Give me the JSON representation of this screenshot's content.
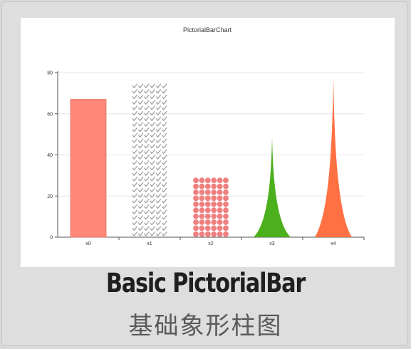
{
  "page": {
    "caption_en": "Basic PictorialBar",
    "caption_zh": "基础象形柱图"
  },
  "chart_data": {
    "type": "bar",
    "title": "PictorialBarChart",
    "categories": [
      "x0",
      "x1",
      "x2",
      "x3",
      "x4"
    ],
    "series": [
      {
        "values": [
          67,
          75,
          30,
          49,
          79
        ]
      }
    ],
    "symbols": [
      "rect",
      "check-mark",
      "circle",
      "spike",
      "spike"
    ],
    "colors": [
      "#ff8878",
      "#a0a0a0",
      "#f08080",
      "#4caf1c",
      "#ff7043"
    ],
    "ylim": [
      0,
      80
    ],
    "yticks": [
      0,
      20,
      40,
      60,
      80
    ],
    "grid": true,
    "legend": "none"
  }
}
